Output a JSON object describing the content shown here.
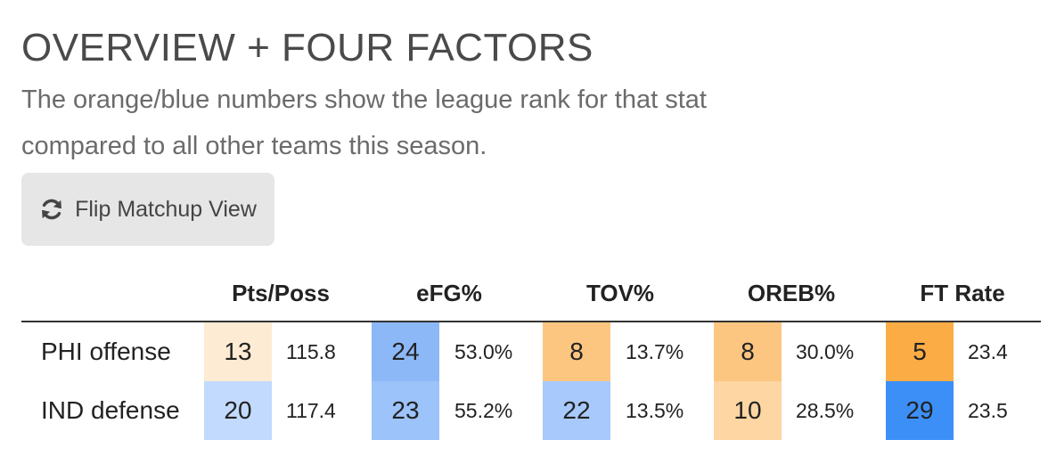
{
  "header": {
    "title": "OVERVIEW + FOUR FACTORS",
    "subtitle": "The orange/blue numbers show the league rank for that stat compared to all other teams this season."
  },
  "flip_button": {
    "label": "Flip Matchup View",
    "icon": "refresh-icon"
  },
  "table": {
    "columns": [
      "Pts/Poss",
      "eFG%",
      "TOV%",
      "OREB%",
      "FT Rate"
    ],
    "rows": [
      {
        "label": "PHI offense",
        "cells": [
          {
            "rank": "13",
            "value": "115.8",
            "color": "#fdebd3"
          },
          {
            "rank": "24",
            "value": "53.0%",
            "color": "#8db8f8"
          },
          {
            "rank": "8",
            "value": "13.7%",
            "color": "#fcc681"
          },
          {
            "rank": "8",
            "value": "30.0%",
            "color": "#fcc681"
          },
          {
            "rank": "5",
            "value": "23.4",
            "color": "#fbac45"
          }
        ]
      },
      {
        "label": "IND defense",
        "cells": [
          {
            "rank": "20",
            "value": "117.4",
            "color": "#c2dafd"
          },
          {
            "rank": "23",
            "value": "55.2%",
            "color": "#9cc3fa"
          },
          {
            "rank": "22",
            "value": "13.5%",
            "color": "#a7c9fb"
          },
          {
            "rank": "10",
            "value": "28.5%",
            "color": "#fdd6a3"
          },
          {
            "rank": "29",
            "value": "23.5",
            "color": "#3c8ff6"
          }
        ]
      }
    ]
  }
}
